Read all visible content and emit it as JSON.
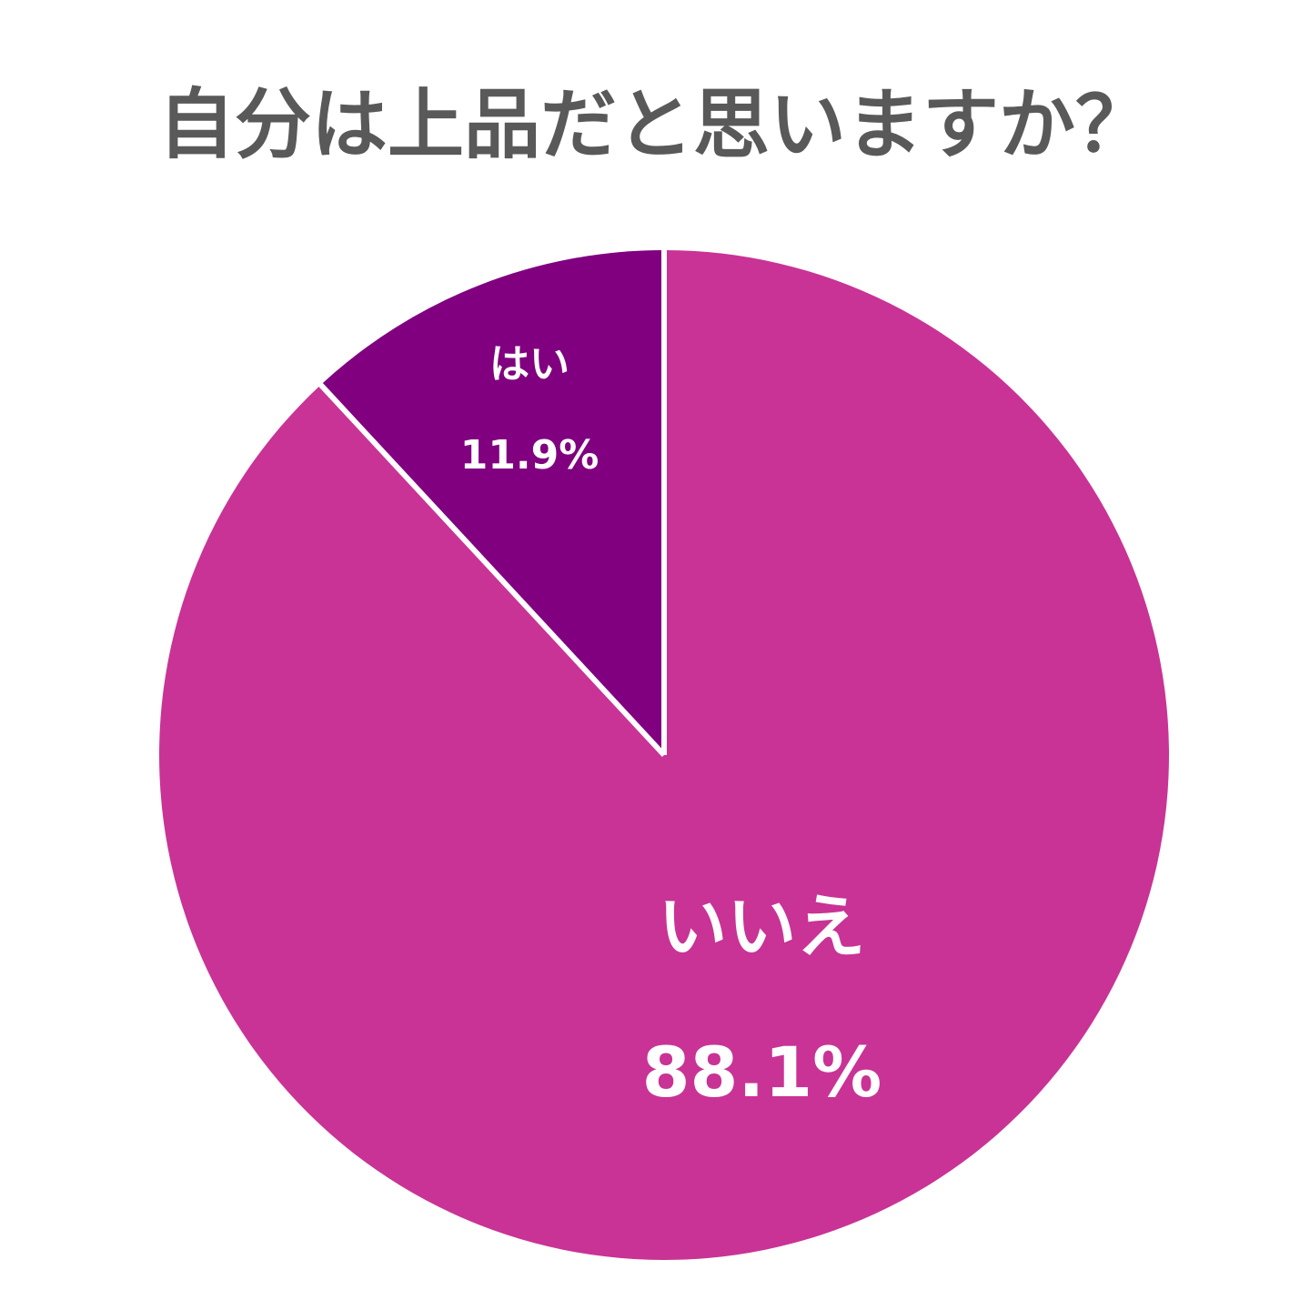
{
  "chart_data": {
    "type": "pie",
    "title": "自分は上品だと思いますか？",
    "slices": [
      {
        "label": "はい",
        "value": 11.9,
        "display": "11.9%",
        "color": "#800080"
      },
      {
        "label": "いいえ",
        "value": 88.1,
        "display": "88.1%",
        "color": "#C93395"
      }
    ],
    "start_angle_deg": 0,
    "direction": "counterclockwise",
    "separator_color": "#FFFFFF",
    "title_color": "#595959",
    "label_color": "#FFFFFF",
    "legend": "none"
  }
}
